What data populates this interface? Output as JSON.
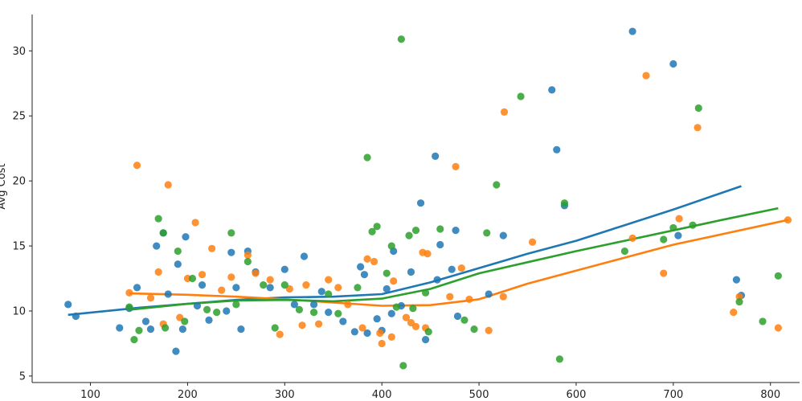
{
  "chart_data": {
    "type": "scatter",
    "ylabel": "Avg Cost",
    "xlabel": "",
    "xlim": [
      40,
      830
    ],
    "ylim": [
      4.5,
      32.8
    ],
    "xticks": [
      "100",
      "200",
      "300",
      "400",
      "500",
      "600",
      "700",
      "800"
    ],
    "xtick_values": [
      100,
      200,
      300,
      400,
      500,
      600,
      700,
      800
    ],
    "yticks": [
      "5",
      "10",
      "15",
      "20",
      "25",
      "30"
    ],
    "ytick_values": [
      5,
      10,
      15,
      20,
      25,
      30
    ],
    "grid": false,
    "series": [
      {
        "color": "#1f77b4",
        "points": [
          [
            77,
            10.5
          ],
          [
            85,
            9.6
          ],
          [
            130,
            8.7
          ],
          [
            140,
            10.2
          ],
          [
            148,
            11.8
          ],
          [
            157,
            9.2
          ],
          [
            162,
            8.6
          ],
          [
            168,
            15.0
          ],
          [
            175,
            16.0
          ],
          [
            180,
            11.3
          ],
          [
            188,
            6.9
          ],
          [
            190,
            13.6
          ],
          [
            195,
            8.6
          ],
          [
            198,
            15.7
          ],
          [
            210,
            10.4
          ],
          [
            215,
            12.0
          ],
          [
            222,
            9.3
          ],
          [
            240,
            10.0
          ],
          [
            245,
            14.5
          ],
          [
            250,
            11.8
          ],
          [
            255,
            8.6
          ],
          [
            262,
            14.6
          ],
          [
            270,
            13.0
          ],
          [
            285,
            11.8
          ],
          [
            300,
            13.2
          ],
          [
            310,
            10.5
          ],
          [
            320,
            14.2
          ],
          [
            330,
            10.5
          ],
          [
            338,
            11.5
          ],
          [
            345,
            9.9
          ],
          [
            360,
            9.2
          ],
          [
            372,
            8.4
          ],
          [
            378,
            13.4
          ],
          [
            382,
            12.8
          ],
          [
            385,
            8.3
          ],
          [
            395,
            9.4
          ],
          [
            400,
            8.5
          ],
          [
            405,
            11.7
          ],
          [
            410,
            9.8
          ],
          [
            412,
            14.6
          ],
          [
            420,
            10.4
          ],
          [
            430,
            13.0
          ],
          [
            440,
            18.3
          ],
          [
            445,
            7.8
          ],
          [
            455,
            21.9
          ],
          [
            457,
            12.4
          ],
          [
            460,
            15.1
          ],
          [
            472,
            13.2
          ],
          [
            476,
            16.2
          ],
          [
            478,
            9.6
          ],
          [
            510,
            11.3
          ],
          [
            525,
            15.8
          ],
          [
            575,
            27.0
          ],
          [
            580,
            22.4
          ],
          [
            588,
            18.1
          ],
          [
            658,
            31.5
          ],
          [
            700,
            29.0
          ],
          [
            705,
            15.8
          ],
          [
            765,
            12.4
          ],
          [
            770,
            11.2
          ]
        ],
        "trend": [
          [
            77,
            9.7
          ],
          [
            150,
            10.25
          ],
          [
            250,
            10.85
          ],
          [
            300,
            11.05
          ],
          [
            350,
            11.1
          ],
          [
            400,
            11.3
          ],
          [
            450,
            12.2
          ],
          [
            500,
            13.3
          ],
          [
            550,
            14.4
          ],
          [
            600,
            15.4
          ],
          [
            650,
            16.6
          ],
          [
            700,
            17.8
          ],
          [
            770,
            19.6
          ]
        ]
      },
      {
        "color": "#ff7f0e",
        "points": [
          [
            140,
            11.4
          ],
          [
            148,
            21.2
          ],
          [
            162,
            11.0
          ],
          [
            170,
            13.0
          ],
          [
            175,
            9.0
          ],
          [
            180,
            19.7
          ],
          [
            192,
            9.5
          ],
          [
            200,
            12.5
          ],
          [
            208,
            16.8
          ],
          [
            215,
            12.8
          ],
          [
            225,
            14.8
          ],
          [
            235,
            11.6
          ],
          [
            245,
            12.6
          ],
          [
            262,
            14.3
          ],
          [
            270,
            12.9
          ],
          [
            285,
            12.4
          ],
          [
            295,
            8.2
          ],
          [
            305,
            11.7
          ],
          [
            318,
            8.9
          ],
          [
            322,
            12.0
          ],
          [
            335,
            9.0
          ],
          [
            345,
            12.4
          ],
          [
            355,
            11.8
          ],
          [
            365,
            10.5
          ],
          [
            380,
            8.7
          ],
          [
            385,
            14.0
          ],
          [
            392,
            13.8
          ],
          [
            398,
            8.3
          ],
          [
            400,
            7.5
          ],
          [
            410,
            8.0
          ],
          [
            412,
            12.3
          ],
          [
            425,
            9.5
          ],
          [
            430,
            9.1
          ],
          [
            435,
            8.8
          ],
          [
            442,
            14.5
          ],
          [
            445,
            8.7
          ],
          [
            447,
            14.4
          ],
          [
            470,
            11.1
          ],
          [
            476,
            21.1
          ],
          [
            482,
            13.3
          ],
          [
            490,
            10.9
          ],
          [
            510,
            8.5
          ],
          [
            525,
            11.1
          ],
          [
            526,
            25.3
          ],
          [
            555,
            15.3
          ],
          [
            658,
            15.6
          ],
          [
            672,
            28.1
          ],
          [
            690,
            12.9
          ],
          [
            706,
            17.1
          ],
          [
            725,
            24.1
          ],
          [
            762,
            9.9
          ],
          [
            768,
            11.1
          ],
          [
            808,
            8.7
          ],
          [
            818,
            17.0
          ]
        ],
        "trend": [
          [
            140,
            11.35
          ],
          [
            200,
            11.25
          ],
          [
            250,
            11.1
          ],
          [
            300,
            10.9
          ],
          [
            350,
            10.65
          ],
          [
            400,
            10.4
          ],
          [
            450,
            10.45
          ],
          [
            500,
            10.9
          ],
          [
            550,
            12.1
          ],
          [
            600,
            13.1
          ],
          [
            650,
            14.1
          ],
          [
            700,
            15.1
          ],
          [
            750,
            15.9
          ],
          [
            818,
            17.0
          ]
        ]
      },
      {
        "color": "#2ca02c",
        "points": [
          [
            140,
            10.3
          ],
          [
            145,
            7.8
          ],
          [
            150,
            8.5
          ],
          [
            170,
            17.1
          ],
          [
            175,
            16.0
          ],
          [
            177,
            8.7
          ],
          [
            190,
            14.6
          ],
          [
            197,
            9.2
          ],
          [
            205,
            12.5
          ],
          [
            220,
            10.1
          ],
          [
            230,
            9.9
          ],
          [
            245,
            16.0
          ],
          [
            250,
            10.5
          ],
          [
            262,
            13.8
          ],
          [
            278,
            12.0
          ],
          [
            290,
            8.7
          ],
          [
            300,
            12.0
          ],
          [
            315,
            10.1
          ],
          [
            330,
            9.9
          ],
          [
            345,
            11.3
          ],
          [
            355,
            9.8
          ],
          [
            375,
            11.8
          ],
          [
            385,
            21.8
          ],
          [
            390,
            16.1
          ],
          [
            395,
            16.5
          ],
          [
            405,
            12.9
          ],
          [
            410,
            15.0
          ],
          [
            415,
            10.3
          ],
          [
            420,
            30.9
          ],
          [
            422,
            5.8
          ],
          [
            428,
            15.8
          ],
          [
            432,
            10.2
          ],
          [
            435,
            16.2
          ],
          [
            445,
            11.4
          ],
          [
            448,
            8.4
          ],
          [
            460,
            16.3
          ],
          [
            485,
            9.3
          ],
          [
            495,
            8.6
          ],
          [
            508,
            16.0
          ],
          [
            518,
            19.7
          ],
          [
            543,
            26.5
          ],
          [
            583,
            6.3
          ],
          [
            588,
            18.3
          ],
          [
            650,
            14.6
          ],
          [
            690,
            15.5
          ],
          [
            700,
            16.4
          ],
          [
            720,
            16.6
          ],
          [
            726,
            25.6
          ],
          [
            768,
            10.7
          ],
          [
            792,
            9.2
          ],
          [
            808,
            12.7
          ]
        ],
        "trend": [
          [
            140,
            10.1
          ],
          [
            200,
            10.55
          ],
          [
            250,
            10.8
          ],
          [
            300,
            10.85
          ],
          [
            350,
            10.75
          ],
          [
            400,
            10.95
          ],
          [
            450,
            11.7
          ],
          [
            500,
            12.9
          ],
          [
            550,
            13.75
          ],
          [
            600,
            14.6
          ],
          [
            650,
            15.4
          ],
          [
            700,
            16.2
          ],
          [
            750,
            17.0
          ],
          [
            808,
            17.9
          ]
        ]
      }
    ]
  }
}
